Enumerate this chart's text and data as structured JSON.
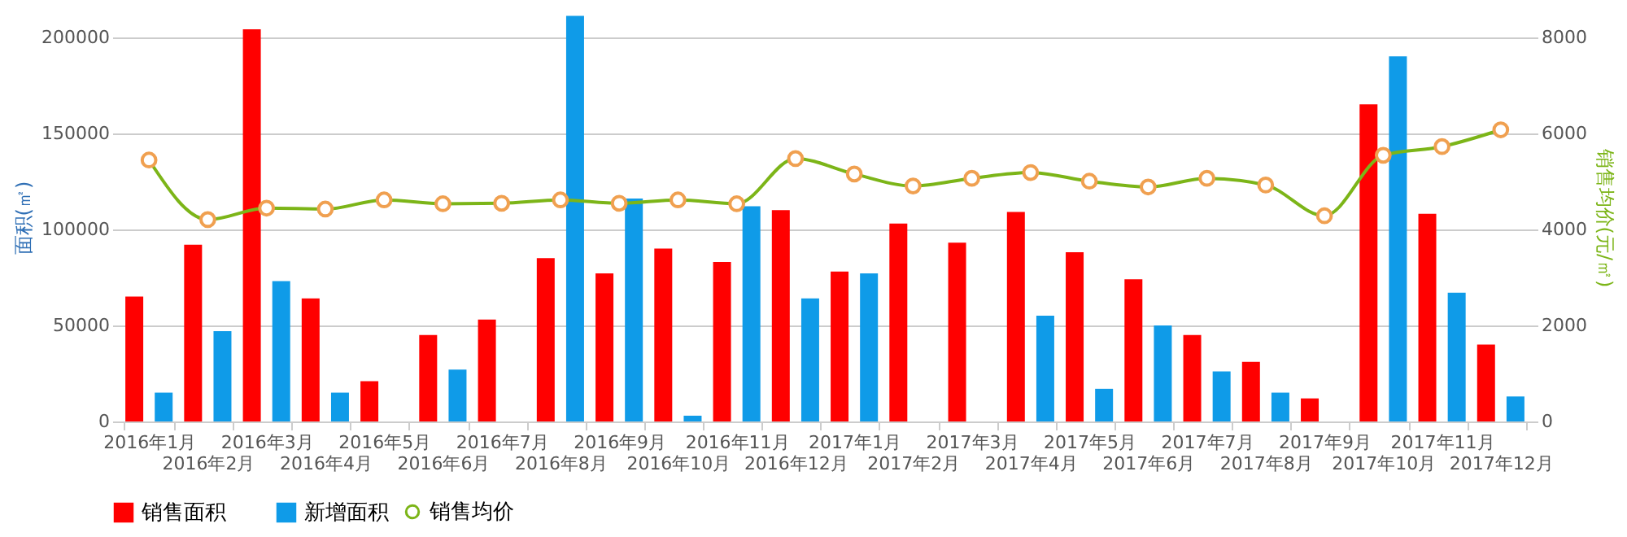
{
  "chart_data": {
    "type": "bar",
    "categories": [
      "2016年1月",
      "2016年2月",
      "2016年3月",
      "2016年4月",
      "2016年5月",
      "2016年6月",
      "2016年7月",
      "2016年8月",
      "2016年9月",
      "2016年10月",
      "2016年11月",
      "2016年12月",
      "2017年1月",
      "2017年2月",
      "2017年3月",
      "2017年4月",
      "2017年5月",
      "2017年6月",
      "2017年7月",
      "2017年8月",
      "2017年9月",
      "2017年10月",
      "2017年11月",
      "2017年12月"
    ],
    "series": [
      {
        "name": "销售面积",
        "color": "#ff0000",
        "values": [
          65000,
          92000,
          204000,
          64000,
          21000,
          45000,
          53000,
          85000,
          77000,
          90000,
          83000,
          110000,
          78000,
          103000,
          93000,
          109000,
          88000,
          74000,
          45000,
          31000,
          12000,
          165000,
          108000,
          40000
        ]
      },
      {
        "name": "新增面积",
        "color": "#0f9be8",
        "values": [
          15000,
          47000,
          73000,
          15000,
          null,
          27000,
          null,
          211000,
          116000,
          3000,
          112000,
          64000,
          77000,
          null,
          null,
          55000,
          17000,
          50000,
          26000,
          15000,
          null,
          190000,
          67000,
          13000
        ]
      },
      {
        "name": "销售均价",
        "type": "line",
        "axis": "y2",
        "color": "#7cb518",
        "marker": "circle",
        "values": [
          5440,
          4200,
          4440,
          4420,
          4610,
          4530,
          4540,
          4610,
          4540,
          4610,
          4530,
          5470,
          5150,
          4900,
          5060,
          5180,
          5000,
          4880,
          5060,
          4920,
          4280,
          5540,
          5720,
          6070
        ]
      }
    ],
    "ylabel": "面积(㎡)",
    "y2label": "销售均价(元/㎡)",
    "ylim": [
      0,
      212500
    ],
    "yticks": [
      0,
      50000,
      100000,
      150000,
      200000
    ],
    "y2lim": [
      0,
      8500
    ],
    "y2ticks": [
      0,
      2000,
      4000,
      6000,
      8000
    ],
    "grid": "y",
    "legend": "bottom"
  }
}
